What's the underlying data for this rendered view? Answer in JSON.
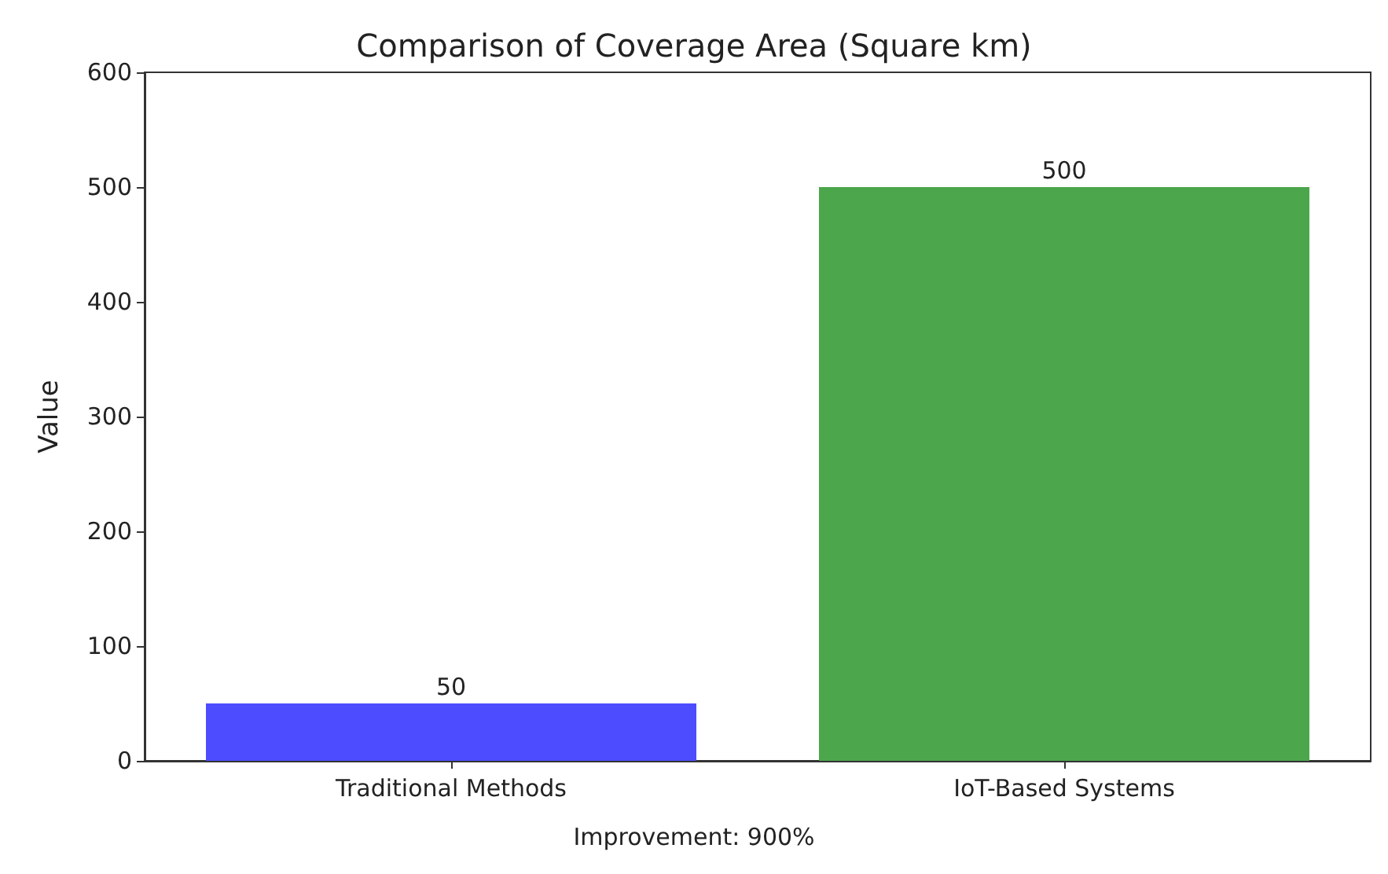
{
  "chart_data": {
    "type": "bar",
    "title": "Comparison of Coverage Area (Square km)",
    "ylabel": "Value",
    "categories": [
      "Traditional Methods",
      "IoT-Based Systems"
    ],
    "values": [
      50,
      500
    ],
    "colors": [
      "#4d4dff",
      "#4ca64c"
    ],
    "ylim": [
      0,
      600
    ],
    "yticks": [
      0,
      100,
      200,
      300,
      400,
      500,
      600
    ],
    "data_labels": true,
    "grid": false,
    "annotations": [
      "Improvement: 900%"
    ]
  }
}
